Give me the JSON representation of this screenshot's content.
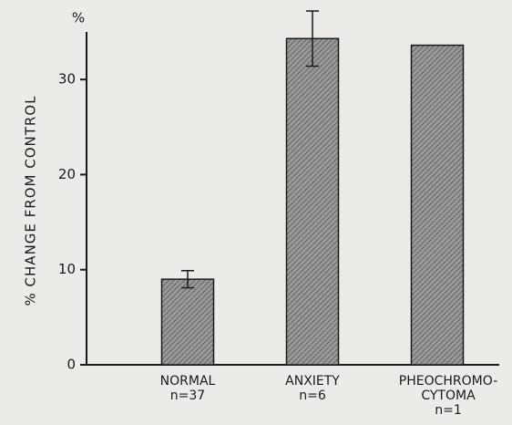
{
  "chart_data": {
    "type": "bar",
    "y_label": "% CHANGE FROM CONTROL",
    "y_unit": "%",
    "categories": [
      [
        "NORMAL",
        "n=37"
      ],
      [
        "ANXIETY",
        "n=6"
      ],
      [
        "PHEOCHROMO-",
        "CYTOMA",
        "n=1"
      ]
    ],
    "values": [
      9,
      34.3,
      33.6
    ],
    "errors": [
      0.9,
      2.9,
      null
    ],
    "color": "#9a9a9a",
    "ylim": [
      0,
      35
    ],
    "yticks": [
      0,
      10,
      20,
      30
    ]
  }
}
